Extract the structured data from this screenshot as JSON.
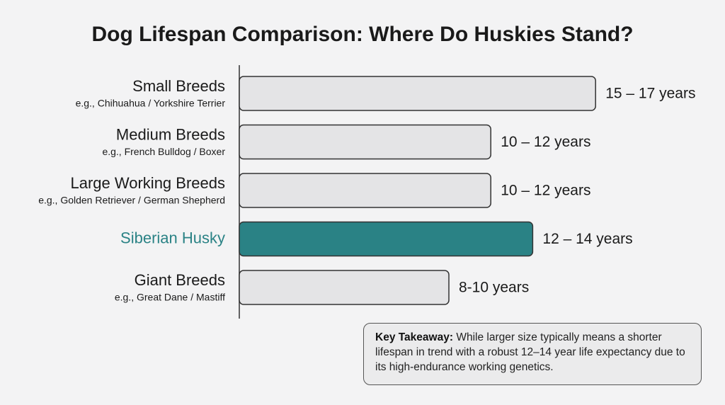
{
  "chart_data": {
    "type": "bar",
    "title": "Dog Lifespan Comparison: Where Do Huskies Stand?",
    "categories": [
      "Small Breeds",
      "Medium Breeds",
      "Large Working Breeds",
      "Siberian Husky",
      "Giant Breeds"
    ],
    "examples": [
      "e.g., Chihuahua / Yorkshire Terrier",
      "e.g., French Bulldog / Boxer",
      "e.g., Golden Retriever / German Shepherd",
      null,
      "e.g., Great Dane / Mastiff"
    ],
    "values": [
      17,
      12,
      12,
      14,
      10
    ],
    "value_labels": [
      "15 – 17 years",
      "10 – 12 years",
      "10 – 12 years",
      "12 – 14 years",
      "8-10 years"
    ],
    "colors": [
      "#e4e4e6",
      "#e4e4e6",
      "#e4e4e6",
      "#2a8285",
      "#e4e4e6"
    ],
    "annotation": {
      "label": "Key Takeaway:",
      "text": "While larger size typically means a shorter lifespan in trend with a robust 12–14 year life expectancy due to its high-endurance working genetics."
    }
  }
}
